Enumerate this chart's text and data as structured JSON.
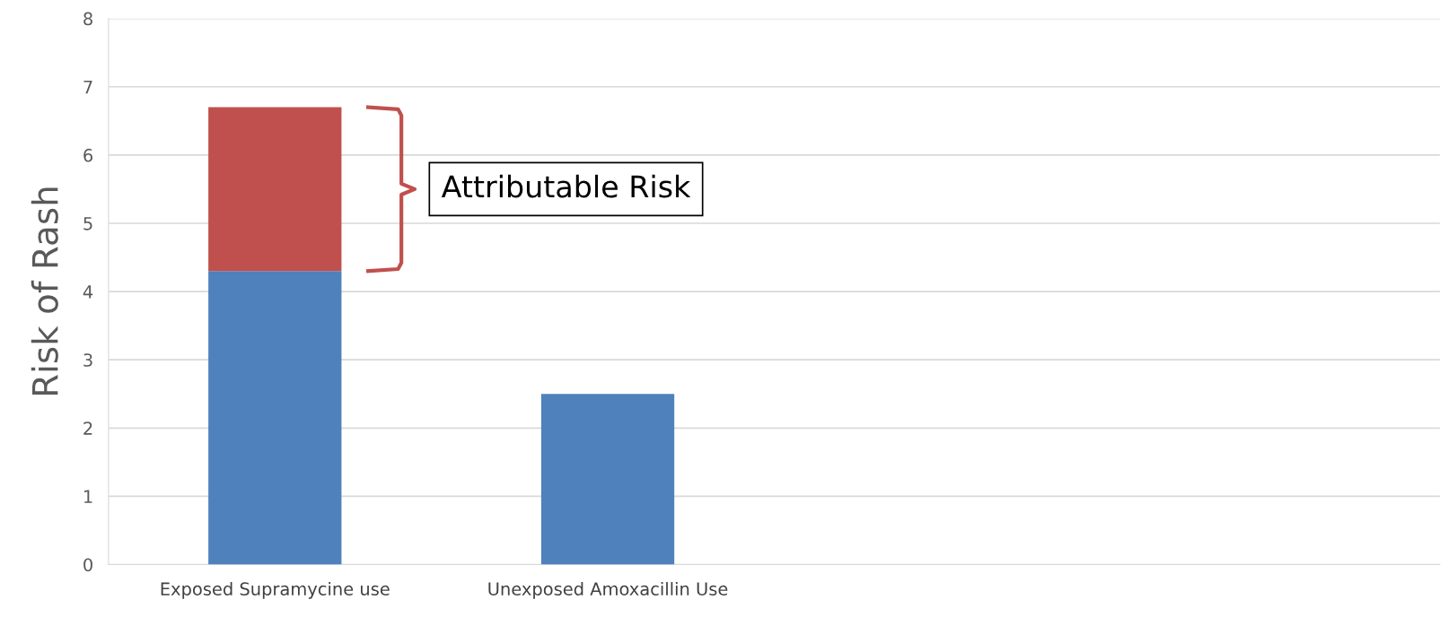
{
  "chart_data": {
    "type": "bar",
    "stacked": true,
    "ylabel": "Risk of Rash",
    "categories": [
      "Exposed Supramycine use",
      "Unexposed Amoxacillin Use",
      null,
      null
    ],
    "series": [
      {
        "color": "#4f81bd",
        "values": [
          4.3,
          2.5,
          null,
          null
        ]
      },
      {
        "color": "#c0504d",
        "values": [
          2.4,
          null,
          null,
          null
        ]
      }
    ],
    "ylim": [
      0,
      8
    ],
    "yticks": [
      0,
      1,
      2,
      3,
      4,
      5,
      6,
      7,
      8
    ],
    "grid": "y",
    "legend": false,
    "annotations": [
      "Attributable Risk"
    ]
  }
}
